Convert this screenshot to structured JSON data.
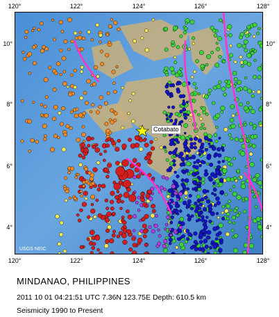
{
  "map": {
    "ticks_x": [
      "120°",
      "122°",
      "124°",
      "126°",
      "128°"
    ],
    "ticks_y": [
      "10°",
      "8°",
      "6°",
      "4°"
    ],
    "credit": "USGS NEIC",
    "city": "Cotabato",
    "colors": {
      "shallow": "#f08a24",
      "intermediate": "#f6e65a",
      "mid": "#3cd23c",
      "deep1": "#1414c8",
      "deep2": "#b43ce6",
      "deepest": "#d21e1e",
      "plate_boundary": "#ff33cc"
    }
  },
  "caption": {
    "title": "MINDANAO, PHILIPPINES",
    "event": "2011 10 01 04:21:51 UTC 7.36N 123.75E Depth: 610.5 km",
    "seismicity": "Seismicity 1990 to Present"
  }
}
